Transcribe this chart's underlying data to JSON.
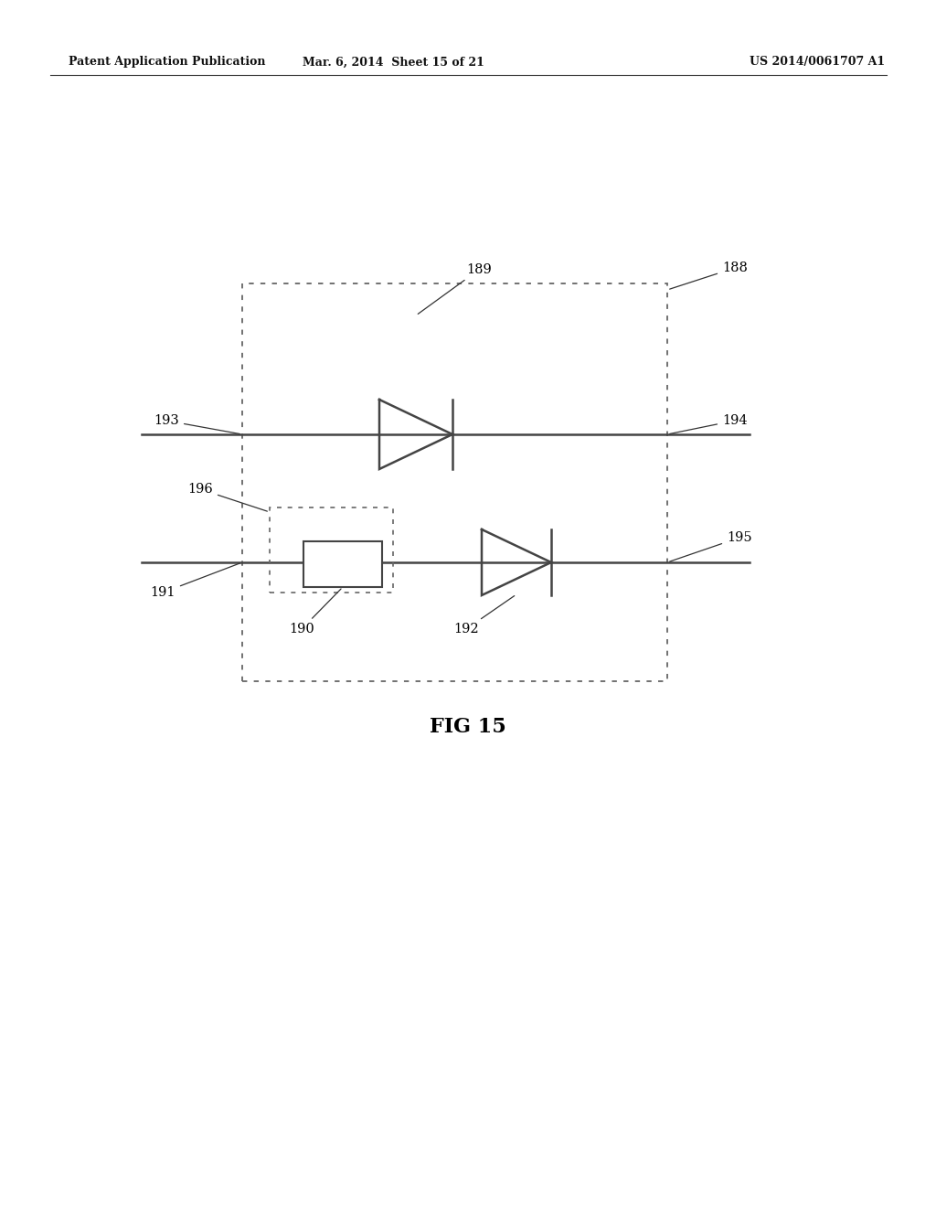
{
  "bg_color": "#ffffff",
  "header_left": "Patent Application Publication",
  "header_mid": "Mar. 6, 2014  Sheet 15 of 21",
  "header_right": "US 2014/0061707 A1",
  "fig_caption": "FIG 15",
  "line_color": "#444444",
  "line_lw": 1.8,
  "label_fontsize": 10.5,
  "label_color": "#000000"
}
